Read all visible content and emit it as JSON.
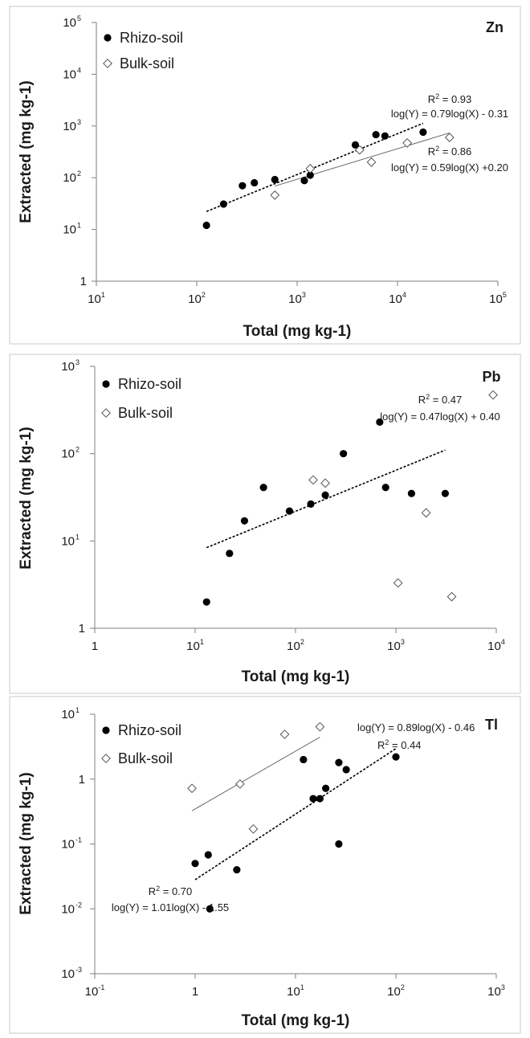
{
  "chart_data": [
    {
      "type": "scatter",
      "panel_label": "Zn",
      "xlabel": "Total (mg kg-1)",
      "ylabel": "Extracted (mg kg-1)",
      "x_scale": "log",
      "y_scale": "log",
      "xlim": [
        10,
        100000
      ],
      "ylim": [
        1,
        100000
      ],
      "x_ticks": [
        {
          "value": 10,
          "base": "10",
          "exp": "1"
        },
        {
          "value": 100,
          "base": "10",
          "exp": "2"
        },
        {
          "value": 1000,
          "base": "10",
          "exp": "3"
        },
        {
          "value": 10000,
          "base": "10",
          "exp": "4"
        },
        {
          "value": 100000,
          "base": "10",
          "exp": "5"
        }
      ],
      "y_ticks": [
        {
          "value": 1,
          "base": "1",
          "exp": ""
        },
        {
          "value": 10,
          "base": "10",
          "exp": "1"
        },
        {
          "value": 100,
          "base": "10",
          "exp": "2"
        },
        {
          "value": 1000,
          "base": "10",
          "exp": "3"
        },
        {
          "value": 10000,
          "base": "10",
          "exp": "4"
        },
        {
          "value": 100000,
          "base": "10",
          "exp": "5"
        }
      ],
      "legend_position": "top-left",
      "series": [
        {
          "name": "Rhizo-soil",
          "marker": "filled-circle",
          "x": [
            125,
            185,
            285,
            375,
            600,
            1180,
            1350,
            3800,
            6100,
            7500,
            18000
          ],
          "y": [
            12,
            31,
            70,
            80,
            92,
            88,
            112,
            430,
            680,
            640,
            760
          ],
          "fit": {
            "slope": 0.79,
            "intercept": -0.31,
            "x_range": [
              125,
              18000
            ],
            "style": "dashed"
          }
        },
        {
          "name": "Bulk-soil",
          "marker": "open-diamond",
          "x": [
            600,
            1350,
            4200,
            5500,
            12500,
            33000
          ],
          "y": [
            46,
            150,
            345,
            200,
            470,
            600
          ],
          "fit": {
            "slope": 0.59,
            "intercept": 0.2,
            "x_range": [
              600,
              33000
            ],
            "style": "solid"
          }
        }
      ],
      "annotations": [
        {
          "r2": "0.93",
          "equation": "log(Y) = 0.79log(X) - 0.31"
        },
        {
          "r2": "0.86",
          "equation": "log(Y) = 0.59log(X) +0.20"
        }
      ]
    },
    {
      "type": "scatter",
      "panel_label": "Pb",
      "xlabel": "Total (mg kg-1)",
      "ylabel": "Extracted (mg kg-1)",
      "x_scale": "log",
      "y_scale": "log",
      "xlim": [
        1,
        10000
      ],
      "ylim": [
        1,
        1000
      ],
      "x_ticks": [
        {
          "value": 1,
          "base": "1",
          "exp": ""
        },
        {
          "value": 10,
          "base": "10",
          "exp": "1"
        },
        {
          "value": 100,
          "base": "10",
          "exp": "2"
        },
        {
          "value": 1000,
          "base": "10",
          "exp": "3"
        },
        {
          "value": 10000,
          "base": "10",
          "exp": "4"
        }
      ],
      "y_ticks": [
        {
          "value": 1,
          "base": "1",
          "exp": ""
        },
        {
          "value": 10,
          "base": "10",
          "exp": "1"
        },
        {
          "value": 100,
          "base": "10",
          "exp": "2"
        },
        {
          "value": 1000,
          "base": "10",
          "exp": "3"
        }
      ],
      "legend_position": "top-left",
      "series": [
        {
          "name": "Rhizo-soil",
          "marker": "filled-circle",
          "x": [
            13,
            22,
            31,
            48,
            87,
            142,
            198,
            300,
            690,
            790,
            1430,
            3100
          ],
          "y": [
            2,
            7.2,
            17,
            41,
            22,
            26.5,
            33.5,
            100,
            230,
            41,
            35,
            35
          ],
          "fit": {
            "slope": 0.47,
            "intercept": 0.4,
            "x_range": [
              13,
              3100
            ],
            "style": "dashed"
          }
        },
        {
          "name": "Bulk-soil",
          "marker": "open-diamond",
          "x": [
            150,
            198,
            1050,
            2000,
            3600,
            9300
          ],
          "y": [
            50,
            46,
            3.3,
            21,
            2.3,
            470
          ]
        }
      ],
      "annotations": [
        {
          "r2": "0.47",
          "equation": "log(Y) = 0.47log(X) + 0.40"
        }
      ]
    },
    {
      "type": "scatter",
      "panel_label": "Tl",
      "xlabel": "Total (mg kg-1)",
      "ylabel": "Extracted (mg kg-1)",
      "x_scale": "log",
      "y_scale": "log",
      "xlim": [
        0.1,
        1000
      ],
      "ylim": [
        0.001,
        10
      ],
      "x_ticks": [
        {
          "value": 0.1,
          "base": "10",
          "exp": "-1"
        },
        {
          "value": 1,
          "base": "1",
          "exp": ""
        },
        {
          "value": 10,
          "base": "10",
          "exp": "1"
        },
        {
          "value": 100,
          "base": "10",
          "exp": "2"
        },
        {
          "value": 1000,
          "base": "10",
          "exp": "3"
        }
      ],
      "y_ticks": [
        {
          "value": 0.001,
          "base": "10",
          "exp": "-3"
        },
        {
          "value": 0.01,
          "base": "10",
          "exp": "-2"
        },
        {
          "value": 0.1,
          "base": "10",
          "exp": "-1"
        },
        {
          "value": 1,
          "base": "1",
          "exp": ""
        },
        {
          "value": 10,
          "base": "10",
          "exp": "1"
        }
      ],
      "legend_position": "top-left",
      "series": [
        {
          "name": "Rhizo-soil",
          "marker": "filled-circle",
          "x": [
            1.0,
            1.35,
            1.4,
            2.6,
            12,
            15,
            17.5,
            20,
            27,
            27,
            32,
            100
          ],
          "y": [
            0.05,
            0.068,
            0.01,
            0.04,
            2.0,
            0.5,
            0.5,
            0.72,
            1.8,
            0.1,
            1.4,
            2.2
          ],
          "fit": {
            "slope": 1.01,
            "intercept": -1.55,
            "x_range": [
              1.0,
              100
            ],
            "style": "dashed"
          }
        },
        {
          "name": "Bulk-soil",
          "marker": "open-diamond",
          "x": [
            0.93,
            2.8,
            3.8,
            7.8,
            17.5
          ],
          "y": [
            0.72,
            0.84,
            0.17,
            4.9,
            6.4
          ],
          "fit": {
            "slope": 0.89,
            "intercept": -0.46,
            "x_range": [
              0.93,
              17.5
            ],
            "style": "solid"
          }
        }
      ],
      "annotations": [
        {
          "r2": "0.44",
          "equation": "log(Y) = 0.89log(X) - 0.46"
        },
        {
          "r2": "0.70",
          "equation": "log(Y) = 1.01log(X) - 1.55"
        }
      ]
    }
  ]
}
